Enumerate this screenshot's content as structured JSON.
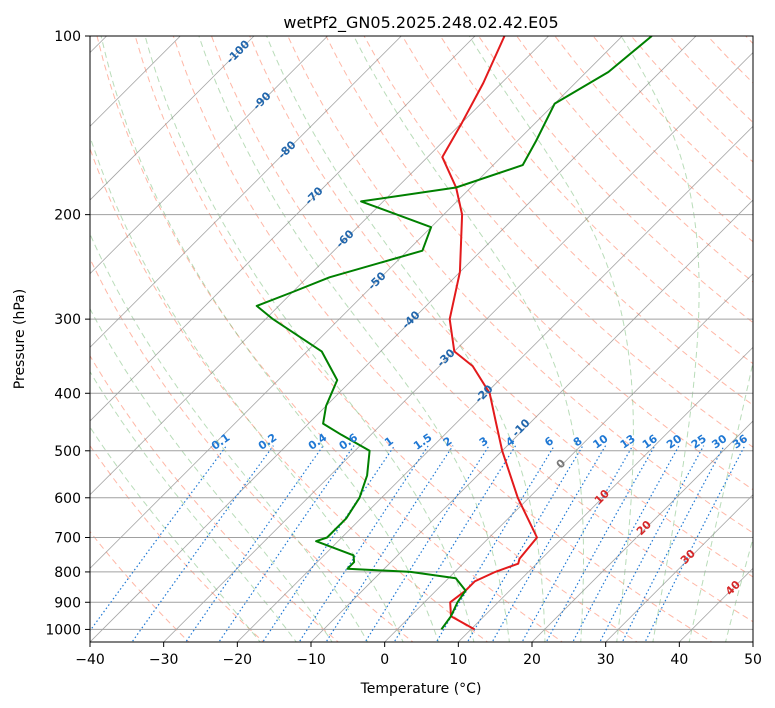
{
  "chart_data": {
    "type": "line",
    "subtype": "skew-t log-p",
    "title": "wetPf2_GN05.2025.248.02.42.E05",
    "xlabel": "Temperature (°C)",
    "ylabel": "Pressure (hPa)",
    "xlim": [
      -40,
      50
    ],
    "ylim": [
      1050,
      100
    ],
    "y_scale": "log",
    "grid": true,
    "x_ticks": [
      -40,
      -30,
      -20,
      -10,
      0,
      10,
      20,
      30,
      40,
      50
    ],
    "y_ticks": [
      100,
      200,
      300,
      400,
      500,
      600,
      700,
      800,
      900,
      1000
    ],
    "series": [
      {
        "color": "#e31a1c",
        "role": "temperature",
        "points": [
          {
            "p": 1000,
            "t": 10.5
          },
          {
            "p": 950,
            "t": 5.5
          },
          {
            "p": 900,
            "t": 3.5
          },
          {
            "p": 860,
            "t": 4.0
          },
          {
            "p": 830,
            "t": 4.0
          },
          {
            "p": 800,
            "t": 5.5
          },
          {
            "p": 775,
            "t": 7.5
          },
          {
            "p": 760,
            "t": 7.0
          },
          {
            "p": 700,
            "t": 6.5
          },
          {
            "p": 600,
            "t": -1.5
          },
          {
            "p": 500,
            "t": -10.0
          },
          {
            "p": 450,
            "t": -14.5
          },
          {
            "p": 400,
            "t": -19.5
          },
          {
            "p": 360,
            "t": -25.5
          },
          {
            "p": 340,
            "t": -30.0
          },
          {
            "p": 300,
            "t": -35.0
          },
          {
            "p": 250,
            "t": -40.0
          },
          {
            "p": 200,
            "t": -47.5
          },
          {
            "p": 180,
            "t": -52.0
          },
          {
            "p": 160,
            "t": -58.0
          },
          {
            "p": 140,
            "t": -60.0
          },
          {
            "p": 120,
            "t": -62.5
          },
          {
            "p": 100,
            "t": -66.0
          }
        ]
      },
      {
        "color": "#008000",
        "role": "dewpoint",
        "points": [
          {
            "p": 1000,
            "t": 6.0
          },
          {
            "p": 950,
            "t": 5.5
          },
          {
            "p": 900,
            "t": 4.5
          },
          {
            "p": 860,
            "t": 4.0
          },
          {
            "p": 820,
            "t": 1.0
          },
          {
            "p": 800,
            "t": -6.0
          },
          {
            "p": 790,
            "t": -15.0
          },
          {
            "p": 770,
            "t": -15.0
          },
          {
            "p": 750,
            "t": -16.0
          },
          {
            "p": 710,
            "t": -23.0
          },
          {
            "p": 700,
            "t": -22.0
          },
          {
            "p": 650,
            "t": -22.0
          },
          {
            "p": 600,
            "t": -23.0
          },
          {
            "p": 550,
            "t": -25.0
          },
          {
            "p": 500,
            "t": -28.0
          },
          {
            "p": 470,
            "t": -34.0
          },
          {
            "p": 450,
            "t": -38.0
          },
          {
            "p": 420,
            "t": -40.0
          },
          {
            "p": 380,
            "t": -42.0
          },
          {
            "p": 340,
            "t": -48.0
          },
          {
            "p": 300,
            "t": -59.0
          },
          {
            "p": 285,
            "t": -63.0
          },
          {
            "p": 270,
            "t": -60.0
          },
          {
            "p": 255,
            "t": -57.0
          },
          {
            "p": 230,
            "t": -48.0
          },
          {
            "p": 210,
            "t": -50.0
          },
          {
            "p": 190,
            "t": -63.0
          },
          {
            "p": 180,
            "t": -52.0
          },
          {
            "p": 165,
            "t": -46.0
          },
          {
            "p": 150,
            "t": -47.5
          },
          {
            "p": 130,
            "t": -50.0
          },
          {
            "p": 115,
            "t": -47.0
          },
          {
            "p": 100,
            "t": -46.0
          }
        ]
      }
    ],
    "isotherm_labels": [
      "-100",
      "-90",
      "-80",
      "-70",
      "-60",
      "-50",
      "-40",
      "-30",
      "-20",
      "-10",
      "0",
      "10",
      "20",
      "30",
      "40"
    ],
    "mixing_ratio_labels": [
      "0.1",
      "0.2",
      "0.4",
      "0.6",
      "1",
      "1.5",
      "2",
      "3",
      "4",
      "6",
      "8",
      "10",
      "13",
      "16",
      "20",
      "25",
      "30",
      "36"
    ],
    "colors": {
      "isotherm": "#808080",
      "dry_adiabat": "#ff9980",
      "moist_adiabat": "#7fbf7f",
      "mixing_ratio": "#1f78d4",
      "cold_label": "#2166ac",
      "warm_label": "#d62728",
      "zero_label": "#777777"
    }
  }
}
